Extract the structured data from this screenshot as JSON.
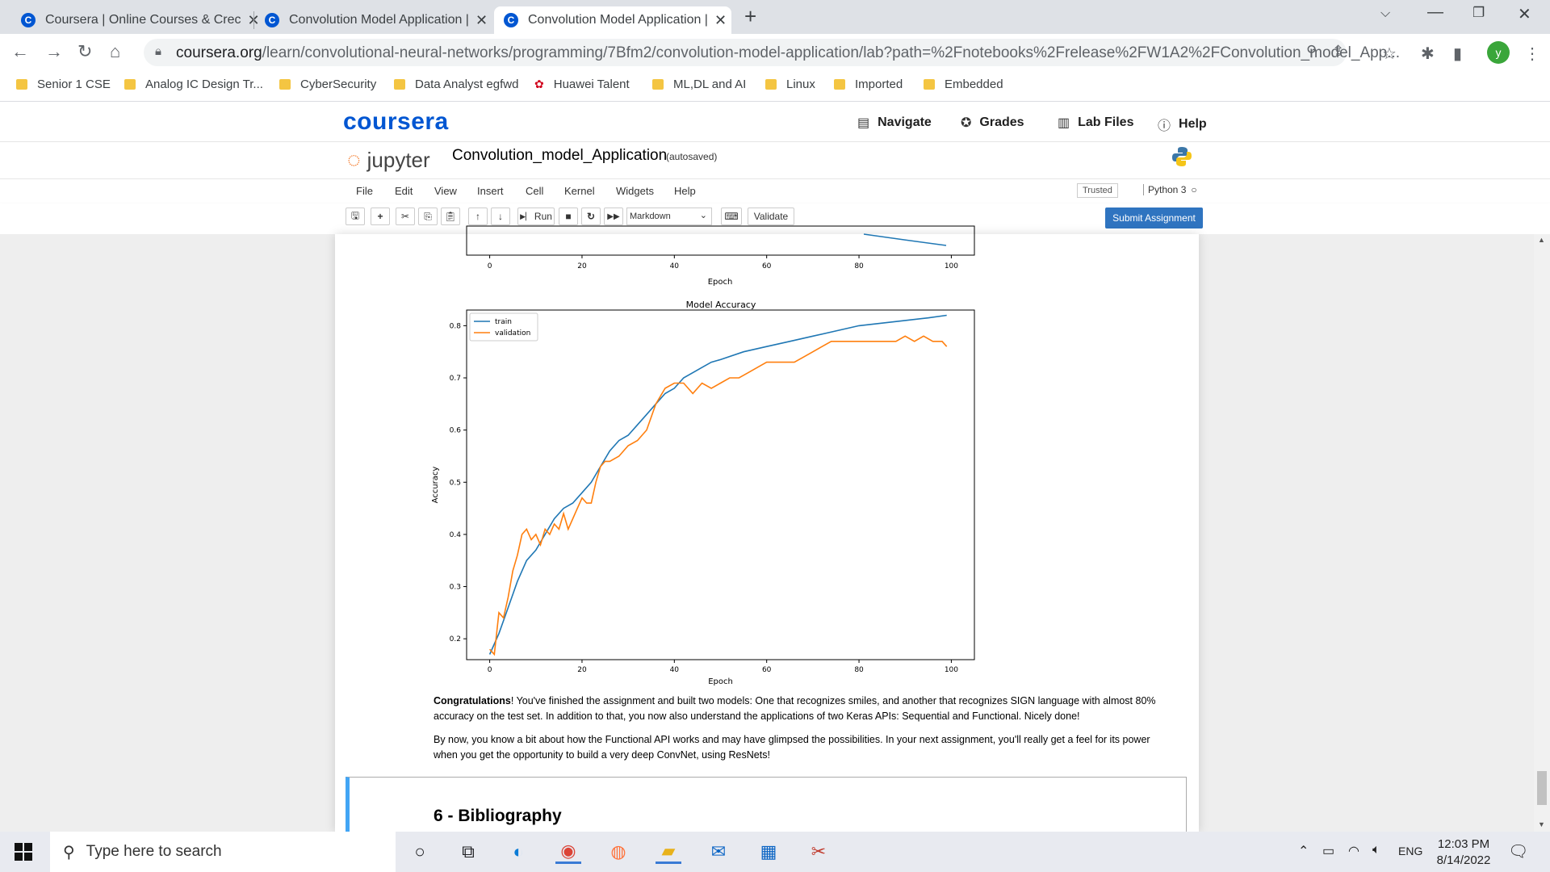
{
  "browser": {
    "tabs": [
      {
        "title": "Coursera | Online Courses & Crec",
        "active": false
      },
      {
        "title": "Convolution Model Application |",
        "active": false
      },
      {
        "title": "Convolution Model Application |",
        "active": true
      }
    ],
    "new_tab_icon": "plus-icon",
    "url_host": "coursera.org",
    "url_path": "/learn/convolutional-neural-networks/programming/7Bfm2/convolution-model-application/lab?path=%2Fnotebooks%2Frelease%2FW1A2%2FConvolution_model_App...",
    "profile_initial": "y",
    "bookmarks": [
      "Senior 1 CSE",
      "Analog IC Design Tr...",
      "CyberSecurity",
      "Data Analyst egfwd",
      "Huawei Talent",
      "ML,DL and AI",
      "Linux",
      "Imported",
      "Embedded"
    ]
  },
  "coursera": {
    "logo": "coursera",
    "nav": [
      {
        "label": "Navigate",
        "icon": "calendar-icon"
      },
      {
        "label": "Grades",
        "icon": "award-icon"
      },
      {
        "label": "Lab Files",
        "icon": "file-icon"
      },
      {
        "label": "Help",
        "icon": "help-icon"
      }
    ]
  },
  "jupyter": {
    "logo_text": "jupyter",
    "notebook_name": "Convolution_model_Application",
    "autosave": "(autosaved)",
    "menus": [
      "File",
      "Edit",
      "View",
      "Insert",
      "Cell",
      "Kernel",
      "Widgets",
      "Help"
    ],
    "trusted": "Trusted",
    "kernel": "Python 3",
    "run_label": "Run",
    "cell_type": "Markdown",
    "validate_label": "Validate",
    "submit_label": "Submit Assignment"
  },
  "loss_chart_tail": {
    "xlabel": "Epoch",
    "x_ticks": [
      "0",
      "20",
      "40",
      "60",
      "80",
      "100"
    ]
  },
  "chart_data": {
    "type": "line",
    "title": "Model Accuracy",
    "xlabel": "Epoch",
    "ylabel": "Accuracy",
    "xlim": [
      -5,
      105
    ],
    "ylim": [
      0.16,
      0.83
    ],
    "x_ticks": [
      0,
      20,
      40,
      60,
      80,
      100
    ],
    "y_ticks": [
      0.2,
      0.3,
      0.4,
      0.5,
      0.6,
      0.7,
      0.8
    ],
    "legend": "top-left",
    "series": [
      {
        "name": "train",
        "color": "#1f77b4",
        "x": [
          0,
          2,
          4,
          6,
          8,
          10,
          12,
          14,
          16,
          18,
          20,
          22,
          24,
          26,
          28,
          30,
          32,
          34,
          36,
          38,
          40,
          42,
          44,
          46,
          48,
          50,
          55,
          60,
          65,
          70,
          75,
          80,
          85,
          90,
          95,
          99
        ],
        "y": [
          0.17,
          0.21,
          0.26,
          0.31,
          0.35,
          0.37,
          0.4,
          0.43,
          0.45,
          0.46,
          0.48,
          0.5,
          0.53,
          0.56,
          0.58,
          0.59,
          0.61,
          0.63,
          0.65,
          0.67,
          0.68,
          0.7,
          0.71,
          0.72,
          0.73,
          0.735,
          0.75,
          0.76,
          0.77,
          0.78,
          0.79,
          0.8,
          0.805,
          0.81,
          0.815,
          0.82
        ]
      },
      {
        "name": "validation",
        "color": "#ff7f0e",
        "x": [
          0,
          1,
          2,
          3,
          4,
          5,
          6,
          7,
          8,
          9,
          10,
          11,
          12,
          13,
          14,
          15,
          16,
          17,
          18,
          19,
          20,
          21,
          22,
          23,
          24,
          25,
          26,
          28,
          30,
          32,
          34,
          36,
          38,
          40,
          42,
          44,
          46,
          48,
          50,
          52,
          54,
          56,
          58,
          60,
          62,
          64,
          66,
          68,
          70,
          72,
          74,
          76,
          78,
          80,
          82,
          84,
          86,
          88,
          90,
          92,
          94,
          96,
          98,
          99
        ],
        "y": [
          0.18,
          0.17,
          0.25,
          0.24,
          0.28,
          0.33,
          0.36,
          0.4,
          0.41,
          0.39,
          0.4,
          0.38,
          0.41,
          0.4,
          0.42,
          0.41,
          0.44,
          0.41,
          0.43,
          0.45,
          0.47,
          0.46,
          0.46,
          0.5,
          0.53,
          0.54,
          0.54,
          0.55,
          0.57,
          0.58,
          0.6,
          0.65,
          0.68,
          0.69,
          0.69,
          0.67,
          0.69,
          0.68,
          0.69,
          0.7,
          0.7,
          0.71,
          0.72,
          0.73,
          0.73,
          0.73,
          0.73,
          0.74,
          0.75,
          0.76,
          0.77,
          0.77,
          0.77,
          0.77,
          0.77,
          0.77,
          0.77,
          0.77,
          0.78,
          0.77,
          0.78,
          0.77,
          0.77,
          0.76
        ]
      }
    ]
  },
  "content": {
    "para1_bold": "Congratulations",
    "para1_rest": "! You've finished the assignment and built two models: One that recognizes smiles, and another that recognizes SIGN language with almost 80% accuracy on the test set. In addition to that, you now also understand the applications of two Keras APIs: Sequential and Functional. Nicely done!",
    "para2": "By now, you know a bit about how the Functional API works and may have glimpsed the possibilities. In your next assignment, you'll really get a feel for its power when you get the opportunity to build a very deep ConvNet, using ResNets!",
    "next_heading": "6 - Bibliography"
  },
  "taskbar": {
    "search_placeholder": "Type here to search",
    "lang": "ENG",
    "time": "12:03 PM",
    "date": "8/14/2022"
  }
}
